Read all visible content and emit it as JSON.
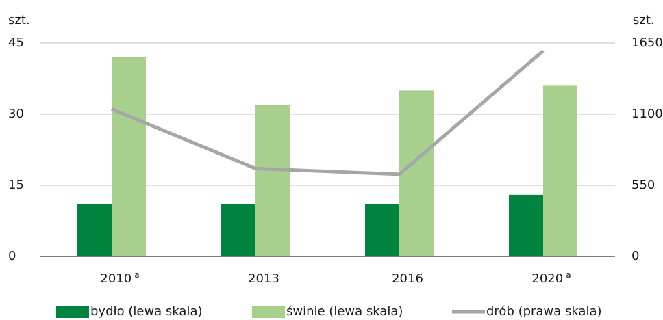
{
  "chart_data": {
    "type": "bar",
    "y_unit": "szt.",
    "y2_unit": "szt.",
    "categories": [
      "2010",
      "2013",
      "2016",
      "2020"
    ],
    "category_notes": [
      "a",
      null,
      null,
      "a"
    ],
    "series": [
      {
        "name": "bydło (lewa skala)",
        "color": "#00843f",
        "type": "bar",
        "values": [
          11,
          11,
          11,
          13
        ]
      },
      {
        "name": "świnie (lewa skala)",
        "color": "#a8d08d",
        "type": "bar",
        "values": [
          42,
          32,
          35,
          36
        ]
      },
      {
        "name": "drób (prawa skala)",
        "color": "#a6a6a6",
        "type": "line",
        "axis": "y2",
        "values": [
          1140,
          680,
          635,
          1590
        ]
      }
    ],
    "ylim": [
      0,
      45
    ],
    "yticks": [
      0,
      15,
      30,
      45
    ],
    "y2lim": [
      0,
      1650
    ],
    "y2ticks": [
      0,
      550,
      1100,
      1650
    ],
    "grid": true,
    "legend": "bottom"
  }
}
